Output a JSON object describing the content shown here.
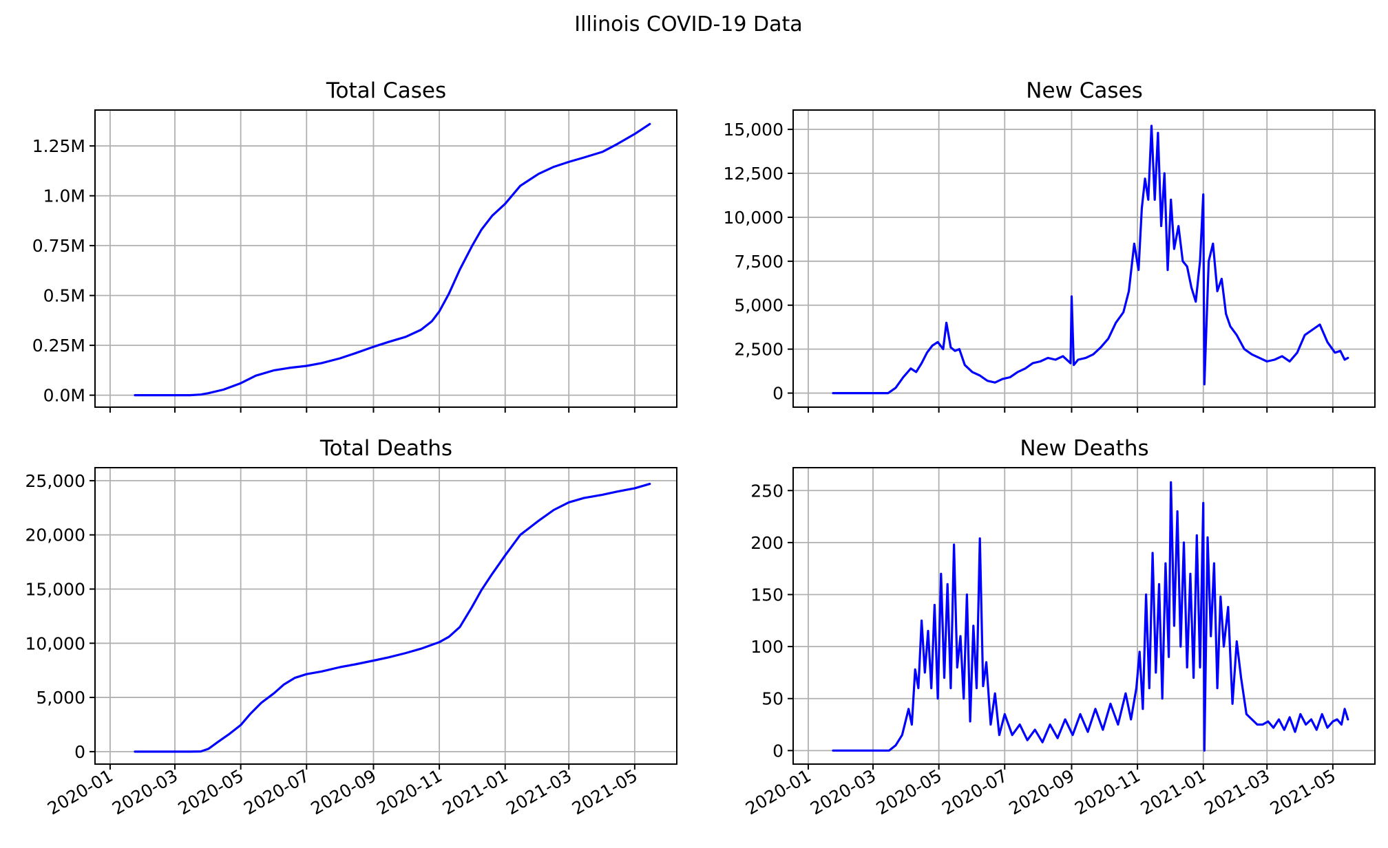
{
  "figure": {
    "suptitle": "Illinois COVID-19 Data",
    "line_color": "#0000ff",
    "grid_color": "#b0b0b0"
  },
  "chart_data": [
    {
      "id": "total-cases",
      "type": "line",
      "title": "Total Cases",
      "xlabel": "",
      "ylabel": "",
      "x_type": "date",
      "xlim": [
        "2019-12-18",
        "2021-06-09"
      ],
      "x_ticks": [
        "2020-01-01",
        "2020-03-01",
        "2020-05-01",
        "2020-07-01",
        "2020-09-01",
        "2020-11-01",
        "2021-01-01",
        "2021-03-01",
        "2021-05-01"
      ],
      "x_tick_labels": [],
      "ylim": [
        -60000,
        1430000
      ],
      "y_ticks": [
        0,
        250000,
        500000,
        750000,
        1000000,
        1250000
      ],
      "y_tick_labels": [
        "0.0M",
        "0.25M",
        "0.5M",
        "0.75M",
        "1.0M",
        "1.25M"
      ],
      "grid": true,
      "series": [
        {
          "color": "#0000ff",
          "x": [
            "2020-01-24",
            "2020-03-01",
            "2020-03-15",
            "2020-03-25",
            "2020-04-01",
            "2020-04-15",
            "2020-05-01",
            "2020-05-15",
            "2020-06-01",
            "2020-06-15",
            "2020-07-01",
            "2020-07-15",
            "2020-08-01",
            "2020-08-15",
            "2020-09-01",
            "2020-09-15",
            "2020-10-01",
            "2020-10-15",
            "2020-10-25",
            "2020-11-01",
            "2020-11-10",
            "2020-11-20",
            "2020-12-01",
            "2020-12-10",
            "2020-12-20",
            "2021-01-01",
            "2021-01-15",
            "2021-02-01",
            "2021-02-15",
            "2021-03-01",
            "2021-03-15",
            "2021-04-01",
            "2021-04-15",
            "2021-05-01",
            "2021-05-15"
          ],
          "y": [
            0,
            0,
            0,
            3000,
            10000,
            28000,
            60000,
            98000,
            125000,
            137000,
            147000,
            161000,
            185000,
            210000,
            243000,
            267000,
            293000,
            328000,
            370000,
            420000,
            510000,
            630000,
            745000,
            830000,
            900000,
            960000,
            1050000,
            1110000,
            1145000,
            1170000,
            1192000,
            1220000,
            1260000,
            1310000,
            1360000
          ]
        }
      ]
    },
    {
      "id": "new-cases",
      "type": "line",
      "title": "New Cases",
      "xlabel": "",
      "ylabel": "",
      "x_type": "date",
      "xlim": [
        "2019-12-18",
        "2021-06-09"
      ],
      "x_ticks": [
        "2020-01-01",
        "2020-03-01",
        "2020-05-01",
        "2020-07-01",
        "2020-09-01",
        "2020-11-01",
        "2021-01-01",
        "2021-03-01",
        "2021-05-01"
      ],
      "x_tick_labels": [],
      "ylim": [
        -800,
        16100
      ],
      "y_ticks": [
        0,
        2500,
        5000,
        7500,
        10000,
        12500,
        15000
      ],
      "y_tick_labels": [
        "0",
        "2,500",
        "5,000",
        "7,500",
        "10,000",
        "12,500",
        "15,000"
      ],
      "grid": true,
      "series": [
        {
          "color": "#0000ff",
          "x": [
            "2020-01-24",
            "2020-03-15",
            "2020-03-22",
            "2020-03-29",
            "2020-04-05",
            "2020-04-10",
            "2020-04-15",
            "2020-04-20",
            "2020-04-25",
            "2020-04-30",
            "2020-05-05",
            "2020-05-08",
            "2020-05-12",
            "2020-05-16",
            "2020-05-20",
            "2020-05-25",
            "2020-06-01",
            "2020-06-08",
            "2020-06-15",
            "2020-06-22",
            "2020-06-29",
            "2020-07-06",
            "2020-07-13",
            "2020-07-20",
            "2020-07-27",
            "2020-08-03",
            "2020-08-10",
            "2020-08-17",
            "2020-08-24",
            "2020-08-31",
            "2020-09-01",
            "2020-09-03",
            "2020-09-07",
            "2020-09-14",
            "2020-09-21",
            "2020-09-28",
            "2020-10-05",
            "2020-10-12",
            "2020-10-19",
            "2020-10-24",
            "2020-10-29",
            "2020-11-02",
            "2020-11-05",
            "2020-11-08",
            "2020-11-11",
            "2020-11-14",
            "2020-11-17",
            "2020-11-20",
            "2020-11-23",
            "2020-11-26",
            "2020-11-29",
            "2020-12-02",
            "2020-12-05",
            "2020-12-09",
            "2020-12-13",
            "2020-12-17",
            "2020-12-21",
            "2020-12-25",
            "2020-12-29",
            "2021-01-01",
            "2021-01-02",
            "2021-01-06",
            "2021-01-10",
            "2021-01-14",
            "2021-01-18",
            "2021-01-22",
            "2021-01-26",
            "2021-02-01",
            "2021-02-08",
            "2021-02-15",
            "2021-02-22",
            "2021-03-01",
            "2021-03-08",
            "2021-03-15",
            "2021-03-22",
            "2021-03-29",
            "2021-04-05",
            "2021-04-12",
            "2021-04-19",
            "2021-04-26",
            "2021-05-03",
            "2021-05-08",
            "2021-05-12",
            "2021-05-15"
          ],
          "y": [
            0,
            0,
            300,
            900,
            1400,
            1200,
            1700,
            2300,
            2700,
            2900,
            2500,
            4000,
            2600,
            2400,
            2500,
            1600,
            1200,
            1000,
            700,
            600,
            800,
            900,
            1200,
            1400,
            1700,
            1800,
            2000,
            1900,
            2100,
            1700,
            5500,
            1600,
            1900,
            2000,
            2200,
            2600,
            3100,
            4000,
            4600,
            5800,
            8500,
            7000,
            10500,
            12200,
            11000,
            15200,
            11000,
            14800,
            9500,
            12500,
            7000,
            11000,
            8200,
            9500,
            7500,
            7200,
            6000,
            5200,
            7500,
            11300,
            500,
            7500,
            8500,
            5800,
            6500,
            4500,
            3800,
            3300,
            2500,
            2200,
            2000,
            1800,
            1900,
            2100,
            1800,
            2300,
            3300,
            3600,
            3900,
            2900,
            2300,
            2400,
            1900,
            2000
          ]
        }
      ]
    },
    {
      "id": "total-deaths",
      "type": "line",
      "title": "Total Deaths",
      "xlabel": "",
      "ylabel": "",
      "x_type": "date",
      "xlim": [
        "2019-12-18",
        "2021-06-09"
      ],
      "x_ticks": [
        "2020-01-01",
        "2020-03-01",
        "2020-05-01",
        "2020-07-01",
        "2020-09-01",
        "2020-11-01",
        "2021-01-01",
        "2021-03-01",
        "2021-05-01"
      ],
      "x_tick_labels": [
        "2020-01",
        "2020-03",
        "2020-05",
        "2020-07",
        "2020-09",
        "2020-11",
        "2021-01",
        "2021-03",
        "2021-05"
      ],
      "ylim": [
        -1150,
        26200
      ],
      "y_ticks": [
        0,
        5000,
        10000,
        15000,
        20000,
        25000
      ],
      "y_tick_labels": [
        "0",
        "5,000",
        "10,000",
        "15,000",
        "20,000",
        "25,000"
      ],
      "grid": true,
      "series": [
        {
          "color": "#0000ff",
          "x": [
            "2020-01-24",
            "2020-03-15",
            "2020-03-25",
            "2020-04-01",
            "2020-04-10",
            "2020-04-20",
            "2020-05-01",
            "2020-05-10",
            "2020-05-20",
            "2020-06-01",
            "2020-06-10",
            "2020-06-20",
            "2020-07-01",
            "2020-07-15",
            "2020-08-01",
            "2020-08-15",
            "2020-09-01",
            "2020-09-15",
            "2020-10-01",
            "2020-10-15",
            "2020-11-01",
            "2020-11-10",
            "2020-11-20",
            "2020-12-01",
            "2020-12-10",
            "2020-12-20",
            "2021-01-01",
            "2021-01-15",
            "2021-02-01",
            "2021-02-15",
            "2021-03-01",
            "2021-03-15",
            "2021-04-01",
            "2021-04-15",
            "2021-05-01",
            "2021-05-15"
          ],
          "y": [
            0,
            0,
            20,
            250,
            900,
            1600,
            2450,
            3500,
            4500,
            5400,
            6200,
            6800,
            7150,
            7400,
            7800,
            8050,
            8400,
            8700,
            9100,
            9500,
            10100,
            10600,
            11500,
            13300,
            14900,
            16400,
            18100,
            20000,
            21300,
            22300,
            23000,
            23400,
            23700,
            24000,
            24300,
            24700
          ]
        }
      ]
    },
    {
      "id": "new-deaths",
      "type": "line",
      "title": "New Deaths",
      "xlabel": "",
      "ylabel": "",
      "x_type": "date",
      "xlim": [
        "2019-12-18",
        "2021-06-09"
      ],
      "x_ticks": [
        "2020-01-01",
        "2020-03-01",
        "2020-05-01",
        "2020-07-01",
        "2020-09-01",
        "2020-11-01",
        "2021-01-01",
        "2021-03-01",
        "2021-05-01"
      ],
      "x_tick_labels": [
        "2020-01",
        "2020-03",
        "2020-05",
        "2020-07",
        "2020-09",
        "2020-11",
        "2021-01",
        "2021-03",
        "2021-05"
      ],
      "ylim": [
        -13,
        272
      ],
      "y_ticks": [
        0,
        50,
        100,
        150,
        200,
        250
      ],
      "y_tick_labels": [
        "0",
        "50",
        "100",
        "150",
        "200",
        "250"
      ],
      "grid": true,
      "series": [
        {
          "color": "#0000ff",
          "x": [
            "2020-01-24",
            "2020-03-16",
            "2020-03-22",
            "2020-03-28",
            "2020-04-03",
            "2020-04-06",
            "2020-04-09",
            "2020-04-12",
            "2020-04-15",
            "2020-04-18",
            "2020-04-21",
            "2020-04-24",
            "2020-04-27",
            "2020-04-30",
            "2020-05-03",
            "2020-05-06",
            "2020-05-09",
            "2020-05-12",
            "2020-05-15",
            "2020-05-18",
            "2020-05-21",
            "2020-05-24",
            "2020-05-27",
            "2020-05-30",
            "2020-06-02",
            "2020-06-05",
            "2020-06-08",
            "2020-06-11",
            "2020-06-14",
            "2020-06-18",
            "2020-06-22",
            "2020-06-26",
            "2020-07-01",
            "2020-07-08",
            "2020-07-15",
            "2020-07-22",
            "2020-07-29",
            "2020-08-05",
            "2020-08-12",
            "2020-08-19",
            "2020-08-26",
            "2020-09-02",
            "2020-09-09",
            "2020-09-16",
            "2020-09-23",
            "2020-09-30",
            "2020-10-07",
            "2020-10-14",
            "2020-10-21",
            "2020-10-26",
            "2020-10-31",
            "2020-11-03",
            "2020-11-06",
            "2020-11-09",
            "2020-11-12",
            "2020-11-15",
            "2020-11-18",
            "2020-11-21",
            "2020-11-24",
            "2020-11-27",
            "2020-11-30",
            "2020-12-02",
            "2020-12-05",
            "2020-12-08",
            "2020-12-11",
            "2020-12-14",
            "2020-12-17",
            "2020-12-20",
            "2020-12-23",
            "2020-12-26",
            "2020-12-29",
            "2021-01-01",
            "2021-01-02",
            "2021-01-05",
            "2021-01-08",
            "2021-01-11",
            "2021-01-14",
            "2021-01-17",
            "2021-01-20",
            "2021-01-24",
            "2021-01-28",
            "2021-02-01",
            "2021-02-05",
            "2021-02-10",
            "2021-02-15",
            "2021-02-20",
            "2021-02-25",
            "2021-03-02",
            "2021-03-07",
            "2021-03-12",
            "2021-03-17",
            "2021-03-22",
            "2021-03-27",
            "2021-04-01",
            "2021-04-06",
            "2021-04-11",
            "2021-04-16",
            "2021-04-21",
            "2021-04-26",
            "2021-05-01",
            "2021-05-05",
            "2021-05-09",
            "2021-05-12",
            "2021-05-15"
          ],
          "y": [
            0,
            0,
            5,
            15,
            40,
            25,
            78,
            60,
            125,
            75,
            115,
            60,
            140,
            50,
            170,
            70,
            160,
            60,
            198,
            80,
            110,
            50,
            150,
            28,
            120,
            60,
            204,
            62,
            85,
            25,
            55,
            15,
            35,
            15,
            25,
            10,
            20,
            8,
            25,
            12,
            30,
            15,
            35,
            18,
            40,
            20,
            45,
            25,
            55,
            30,
            60,
            95,
            40,
            150,
            60,
            190,
            75,
            160,
            50,
            180,
            90,
            258,
            120,
            230,
            100,
            200,
            80,
            170,
            70,
            207,
            80,
            238,
            0,
            205,
            110,
            180,
            60,
            148,
            100,
            138,
            45,
            105,
            70,
            35,
            30,
            25,
            25,
            28,
            22,
            30,
            20,
            32,
            18,
            35,
            25,
            30,
            20,
            35,
            22,
            28,
            30,
            25,
            40,
            30
          ]
        }
      ]
    }
  ]
}
